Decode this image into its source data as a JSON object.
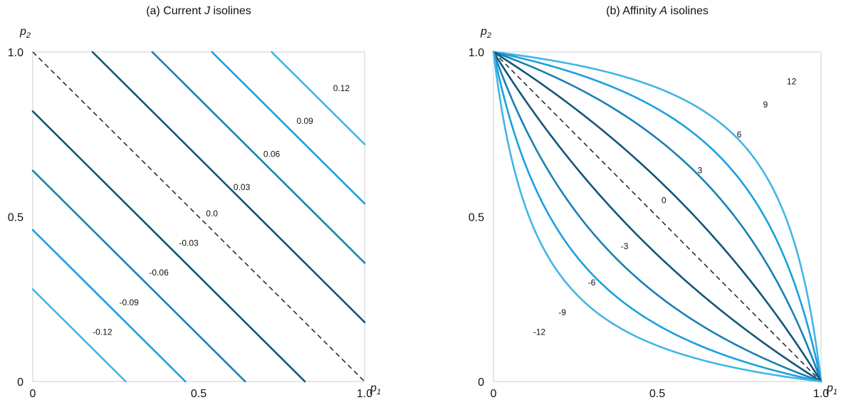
{
  "chart_data": [
    {
      "type": "line",
      "title": "(a) Current J isolines",
      "title_parts": {
        "prefix": "(a) Current ",
        "var": "J",
        "suffix": " isolines"
      },
      "xlabel": "p1",
      "ylabel": "p2",
      "xlim": [
        0,
        1
      ],
      "ylim": [
        0,
        1
      ],
      "xticks": [
        "0",
        "0.5",
        "1.0"
      ],
      "yticks": [
        "0",
        "0.5",
        "1.0"
      ],
      "grid": false,
      "reference_line": {
        "style": "dashed",
        "from": [
          0,
          1
        ],
        "to": [
          1,
          0
        ]
      },
      "series": [
        {
          "name": "0.12",
          "offset": 0.72,
          "color": "#41b6e6"
        },
        {
          "name": "0.09",
          "offset": 0.54,
          "color": "#1aa0e0"
        },
        {
          "name": "0.06",
          "offset": 0.36,
          "color": "#1b7fb5"
        },
        {
          "name": "0.03",
          "offset": 0.18,
          "color": "#11567a"
        },
        {
          "name": "-0.03",
          "offset": -0.18,
          "color": "#11567a"
        },
        {
          "name": "-0.06",
          "offset": -0.36,
          "color": "#1b7fb5"
        },
        {
          "name": "-0.09",
          "offset": -0.54,
          "color": "#1aa0e0"
        },
        {
          "name": "-0.12",
          "offset": -0.72,
          "color": "#41b6e6"
        }
      ],
      "annotations": [
        {
          "text": "0.12",
          "x": 0.93,
          "y": 0.89
        },
        {
          "text": "0.09",
          "x": 0.82,
          "y": 0.79
        },
        {
          "text": "0.06",
          "x": 0.72,
          "y": 0.69
        },
        {
          "text": "0.03",
          "x": 0.63,
          "y": 0.59
        },
        {
          "text": "0.0",
          "x": 0.54,
          "y": 0.51
        },
        {
          "text": "-0.03",
          "x": 0.47,
          "y": 0.42
        },
        {
          "text": "-0.06",
          "x": 0.38,
          "y": 0.33
        },
        {
          "text": "-0.09",
          "x": 0.29,
          "y": 0.24
        },
        {
          "text": "-0.12",
          "x": 0.21,
          "y": 0.15
        }
      ]
    },
    {
      "type": "line",
      "title": "(b) Affinity A isolines",
      "title_parts": {
        "prefix": "(b) Affinity ",
        "var": "A",
        "suffix": " isolines"
      },
      "xlabel": "p1",
      "ylabel": "p2",
      "xlim": [
        0,
        1
      ],
      "ylim": [
        0,
        1
      ],
      "xticks": [
        "0",
        "0.5",
        "1.0"
      ],
      "yticks": [
        "0",
        "0.5",
        "1.0"
      ],
      "grid": false,
      "reference_line": {
        "style": "dashed",
        "from": [
          0,
          1
        ],
        "to": [
          1,
          0
        ]
      },
      "series": [
        {
          "name": "12",
          "k": 8.2,
          "color": "#41b6e6"
        },
        {
          "name": "9",
          "k": 4.8,
          "color": "#1aa0e0"
        },
        {
          "name": "6",
          "k": 2.8,
          "color": "#1b7fb5"
        },
        {
          "name": "3",
          "k": 1.6,
          "color": "#11567a"
        },
        {
          "name": "-3",
          "k": 0.625,
          "color": "#11567a"
        },
        {
          "name": "-6",
          "k": 0.357,
          "color": "#1b7fb5"
        },
        {
          "name": "-9",
          "k": 0.208,
          "color": "#1aa0e0"
        },
        {
          "name": "-12",
          "k": 0.122,
          "color": "#41b6e6"
        }
      ],
      "annotations": [
        {
          "text": "12",
          "x": 0.91,
          "y": 0.91
        },
        {
          "text": "9",
          "x": 0.83,
          "y": 0.84
        },
        {
          "text": "6",
          "x": 0.75,
          "y": 0.75
        },
        {
          "text": "3",
          "x": 0.63,
          "y": 0.64
        },
        {
          "text": "0",
          "x": 0.52,
          "y": 0.55
        },
        {
          "text": "-3",
          "x": 0.4,
          "y": 0.41
        },
        {
          "text": "-6",
          "x": 0.3,
          "y": 0.3
        },
        {
          "text": "-9",
          "x": 0.21,
          "y": 0.21
        },
        {
          "text": "-12",
          "x": 0.14,
          "y": 0.15
        }
      ]
    }
  ]
}
